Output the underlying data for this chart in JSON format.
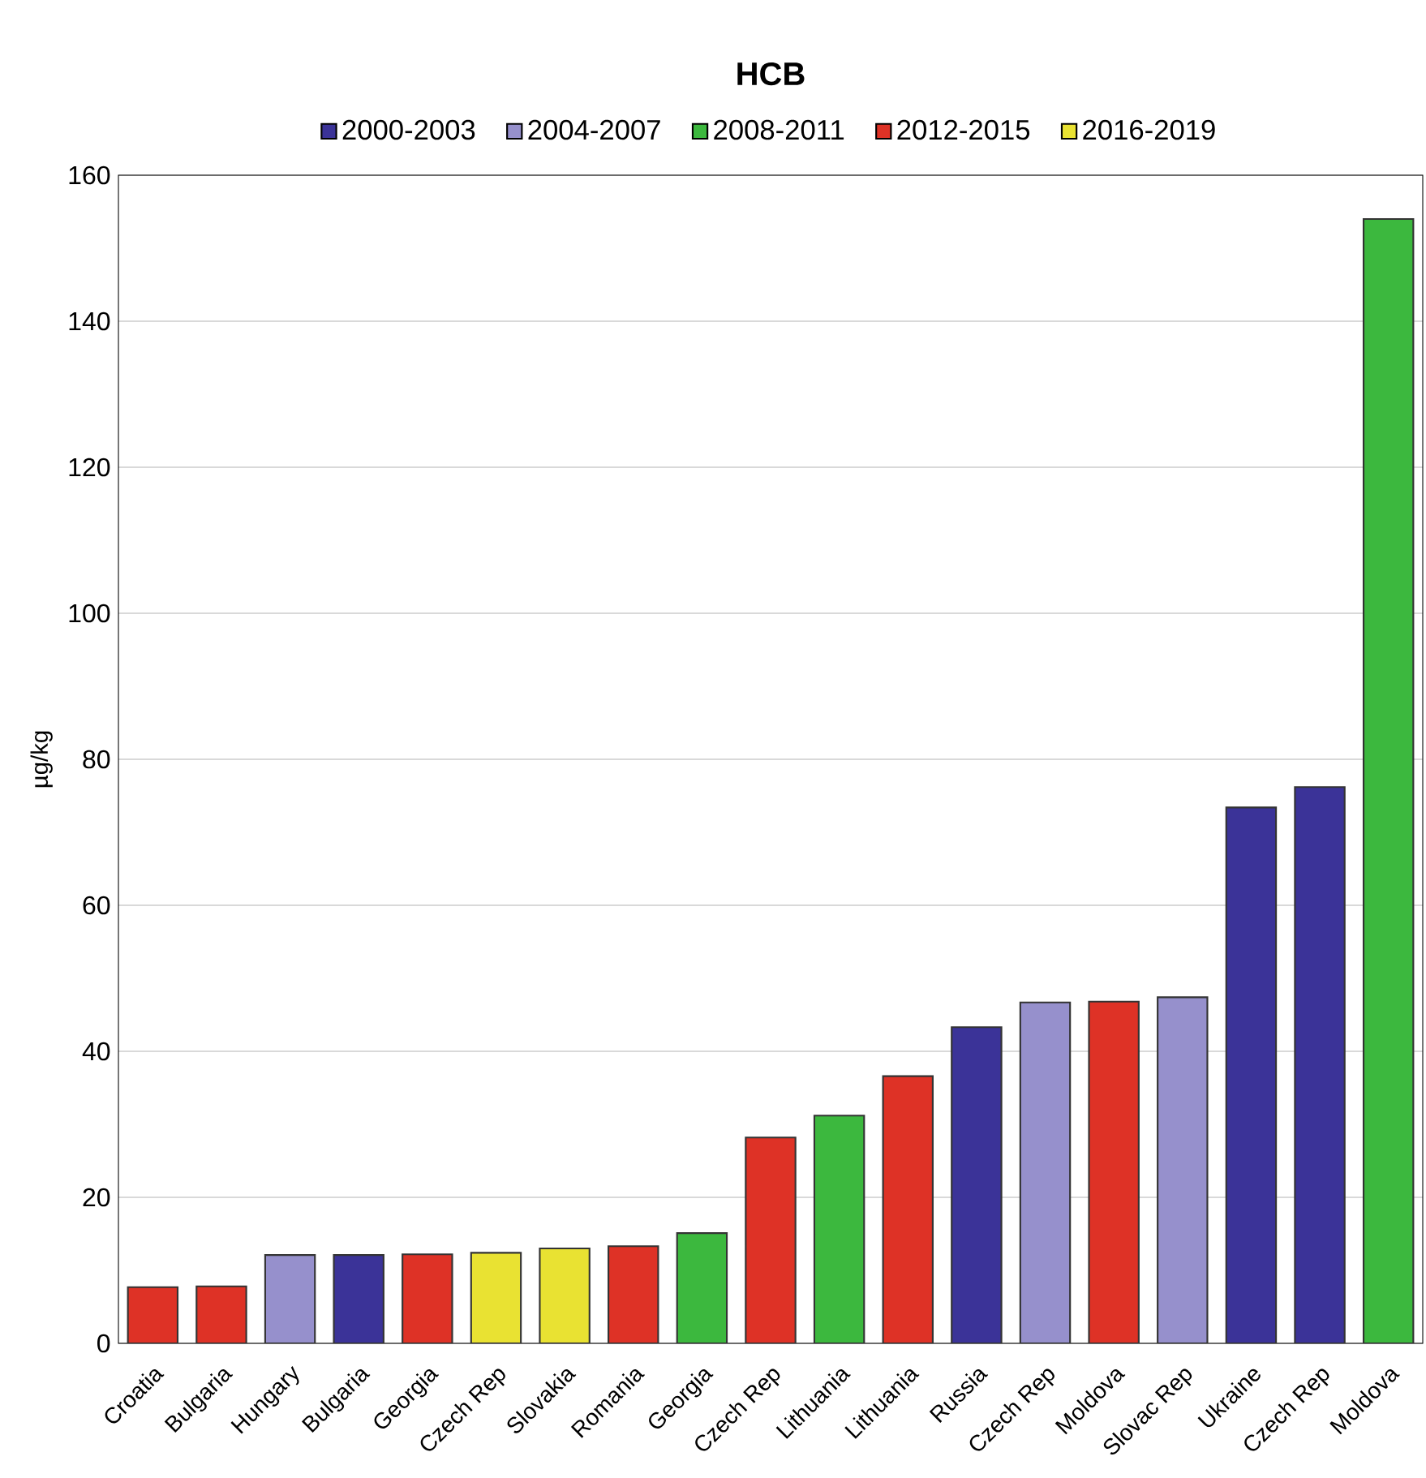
{
  "chart_data": {
    "type": "bar",
    "title": "HCB",
    "ylabel": "µg/kg",
    "categories": [
      "Croatia",
      "Bulgaria",
      "Hungary",
      "Bulgaria",
      "Georgia",
      "Czech Rep",
      "Slovakia",
      "Romania",
      "Georgia",
      "Czech Rep",
      "Lithuania",
      "Lithuania",
      "Russia",
      "Czech Rep",
      "Moldova",
      "Slovac Rep",
      "Ukraine",
      "Czech Rep",
      "Moldova"
    ],
    "series": [
      {
        "name": "2000-2003",
        "color": "#3b3398",
        "values": [
          null,
          null,
          null,
          12.1,
          null,
          null,
          null,
          null,
          null,
          null,
          null,
          null,
          43.3,
          null,
          null,
          null,
          73.4,
          76.2,
          null
        ]
      },
      {
        "name": "2004-2007",
        "color": "#9690cc",
        "values": [
          null,
          null,
          12.1,
          null,
          null,
          null,
          null,
          null,
          null,
          null,
          null,
          null,
          null,
          46.7,
          null,
          47.4,
          null,
          null,
          null
        ]
      },
      {
        "name": "2008-2011",
        "color": "#3cb83e",
        "values": [
          null,
          null,
          null,
          null,
          null,
          null,
          null,
          null,
          15.1,
          null,
          31.2,
          null,
          null,
          null,
          null,
          null,
          null,
          null,
          154.0
        ]
      },
      {
        "name": "2012-2015",
        "color": "#de3226",
        "values": [
          7.7,
          7.8,
          null,
          null,
          12.2,
          null,
          null,
          13.3,
          null,
          28.2,
          null,
          36.6,
          null,
          null,
          46.8,
          null,
          null,
          null,
          null
        ]
      },
      {
        "name": "2016-2019",
        "color": "#e9e232",
        "values": [
          null,
          null,
          null,
          null,
          null,
          12.4,
          13.0,
          null,
          null,
          null,
          null,
          null,
          null,
          null,
          null,
          null,
          null,
          null,
          null
        ]
      }
    ],
    "ylim": [
      0,
      160
    ],
    "yticks": [
      0,
      20,
      40,
      60,
      80,
      100,
      120,
      140,
      160
    ],
    "grid": "y",
    "legend": "top"
  }
}
